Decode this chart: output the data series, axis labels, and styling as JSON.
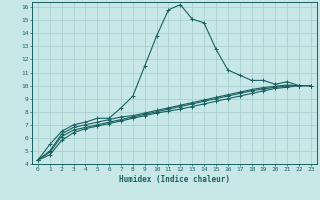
{
  "xlabel": "Humidex (Indice chaleur)",
  "bg_color": "#c8e8e8",
  "grid_color": "#a8d0d0",
  "line_color": "#1a6060",
  "xlim": [
    -0.5,
    23.5
  ],
  "ylim": [
    4,
    16.4
  ],
  "xticks": [
    0,
    1,
    2,
    3,
    4,
    5,
    6,
    7,
    8,
    9,
    10,
    11,
    12,
    13,
    14,
    15,
    16,
    17,
    18,
    19,
    20,
    21,
    22,
    23
  ],
  "yticks": [
    4,
    5,
    6,
    7,
    8,
    9,
    10,
    11,
    12,
    13,
    14,
    15,
    16
  ],
  "lines": [
    {
      "x": [
        0,
        1,
        2,
        3,
        4,
        5,
        6,
        7,
        8,
        9,
        10,
        11,
        12,
        13,
        14,
        15,
        16,
        17,
        18,
        19,
        20,
        21,
        22,
        23
      ],
      "y": [
        4.3,
        5.5,
        6.5,
        7.0,
        7.2,
        7.5,
        7.5,
        8.3,
        9.2,
        11.5,
        13.8,
        15.8,
        16.2,
        15.1,
        14.8,
        12.8,
        11.2,
        10.8,
        10.4,
        10.4,
        10.1,
        10.3,
        10.0,
        10.0
      ]
    },
    {
      "x": [
        0,
        1,
        2,
        3,
        4,
        5,
        6,
        7,
        8,
        9,
        10,
        11,
        12,
        13,
        14,
        15,
        16,
        17,
        18,
        19,
        20,
        21,
        22,
        23
      ],
      "y": [
        4.3,
        5.0,
        6.3,
        6.8,
        7.0,
        7.2,
        7.4,
        7.6,
        7.7,
        7.9,
        8.1,
        8.3,
        8.5,
        8.7,
        8.9,
        9.1,
        9.3,
        9.5,
        9.7,
        9.85,
        9.95,
        10.05,
        10.0,
        10.0
      ]
    },
    {
      "x": [
        0,
        1,
        2,
        3,
        4,
        5,
        6,
        7,
        8,
        9,
        10,
        11,
        12,
        13,
        14,
        15,
        16,
        17,
        18,
        19,
        20,
        21,
        22,
        23
      ],
      "y": [
        4.3,
        4.9,
        6.1,
        6.6,
        6.8,
        7.0,
        7.2,
        7.4,
        7.6,
        7.8,
        8.0,
        8.2,
        8.4,
        8.6,
        8.8,
        9.0,
        9.2,
        9.4,
        9.6,
        9.75,
        9.87,
        9.97,
        10.0,
        10.0
      ]
    },
    {
      "x": [
        0,
        1,
        2,
        3,
        4,
        5,
        6,
        7,
        8,
        9,
        10,
        11,
        12,
        13,
        14,
        15,
        16,
        17,
        18,
        19,
        20,
        21,
        22,
        23
      ],
      "y": [
        4.3,
        4.7,
        5.8,
        6.4,
        6.7,
        6.9,
        7.1,
        7.3,
        7.5,
        7.7,
        7.9,
        8.05,
        8.2,
        8.4,
        8.6,
        8.8,
        9.0,
        9.2,
        9.4,
        9.6,
        9.78,
        9.88,
        10.0,
        10.0
      ]
    }
  ]
}
